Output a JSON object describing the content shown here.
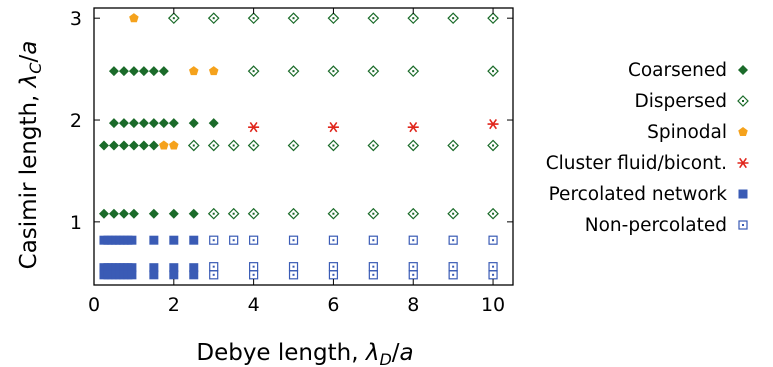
{
  "chart_data": {
    "type": "scatter",
    "xlabel": {
      "prefix": "Debye length, ",
      "sym": "λ",
      "sub": "D",
      "suffix": "/a"
    },
    "ylabel": {
      "prefix": "Casimir length, ",
      "sym": "λ",
      "sub": "C",
      "suffix": "/a"
    },
    "xlim": [
      0,
      10.5
    ],
    "ylim": [
      0.38,
      3.1
    ],
    "xticks": [
      0,
      2,
      4,
      6,
      8,
      10
    ],
    "yticks": [
      1,
      2,
      3
    ],
    "grid": false,
    "legend_position": "right",
    "series": [
      {
        "name": "Coarsened",
        "marker": "diamond-filled",
        "color": "#1b6b2a",
        "points": [
          [
            0.5,
            2.48
          ],
          [
            0.75,
            2.48
          ],
          [
            1.0,
            2.48
          ],
          [
            1.25,
            2.48
          ],
          [
            1.5,
            2.48
          ],
          [
            1.75,
            2.48
          ],
          [
            0.5,
            1.97
          ],
          [
            0.75,
            1.97
          ],
          [
            1.0,
            1.97
          ],
          [
            1.25,
            1.97
          ],
          [
            1.5,
            1.97
          ],
          [
            1.75,
            1.97
          ],
          [
            2.0,
            1.97
          ],
          [
            2.5,
            1.97
          ],
          [
            3.0,
            1.97
          ],
          [
            0.25,
            1.75
          ],
          [
            0.5,
            1.75
          ],
          [
            0.75,
            1.75
          ],
          [
            1.0,
            1.75
          ],
          [
            1.25,
            1.75
          ],
          [
            1.5,
            1.75
          ],
          [
            0.25,
            1.08
          ],
          [
            0.5,
            1.08
          ],
          [
            0.75,
            1.08
          ],
          [
            1.0,
            1.08
          ],
          [
            1.5,
            1.08
          ],
          [
            2.0,
            1.08
          ],
          [
            2.5,
            1.08
          ]
        ]
      },
      {
        "name": "Dispersed",
        "marker": "diamond-open",
        "color": "#1b6b2a",
        "points": [
          [
            2,
            3
          ],
          [
            3,
            3
          ],
          [
            4,
            3
          ],
          [
            5,
            3
          ],
          [
            6,
            3
          ],
          [
            7,
            3
          ],
          [
            8,
            3
          ],
          [
            9,
            3
          ],
          [
            10,
            3
          ],
          [
            4,
            2.48
          ],
          [
            5,
            2.48
          ],
          [
            6,
            2.48
          ],
          [
            7,
            2.48
          ],
          [
            8,
            2.48
          ],
          [
            10,
            2.48
          ],
          [
            2.5,
            1.75
          ],
          [
            3,
            1.75
          ],
          [
            3.5,
            1.75
          ],
          [
            4,
            1.75
          ],
          [
            5,
            1.75
          ],
          [
            6,
            1.75
          ],
          [
            7,
            1.75
          ],
          [
            8,
            1.75
          ],
          [
            9,
            1.75
          ],
          [
            10,
            1.75
          ],
          [
            3,
            1.08
          ],
          [
            3.5,
            1.08
          ],
          [
            4,
            1.08
          ],
          [
            5,
            1.08
          ],
          [
            6,
            1.08
          ],
          [
            7,
            1.08
          ],
          [
            8,
            1.08
          ],
          [
            9,
            1.08
          ],
          [
            10,
            1.08
          ]
        ]
      },
      {
        "name": "Spinodal",
        "marker": "pentagon",
        "color": "#f5a21c",
        "points": [
          [
            1,
            3
          ],
          [
            2.5,
            2.48
          ],
          [
            3,
            2.48
          ],
          [
            1.75,
            1.75
          ],
          [
            2,
            1.75
          ]
        ]
      },
      {
        "name": "Cluster fluid/bicont.",
        "marker": "asterisk",
        "color": "#e0261c",
        "points": [
          [
            4,
            1.93
          ],
          [
            6,
            1.93
          ],
          [
            8,
            1.93
          ],
          [
            10,
            1.96
          ]
        ]
      },
      {
        "name": "Percolated network",
        "marker": "square-filled",
        "color": "#3a5bb5",
        "points": [
          [
            0.25,
            0.82
          ],
          [
            0.35,
            0.82
          ],
          [
            0.45,
            0.82
          ],
          [
            0.55,
            0.82
          ],
          [
            0.65,
            0.82
          ],
          [
            0.75,
            0.82
          ],
          [
            0.85,
            0.82
          ],
          [
            0.95,
            0.82
          ],
          [
            1.5,
            0.82
          ],
          [
            2.0,
            0.82
          ],
          [
            2.5,
            0.82
          ],
          [
            0.25,
            0.55
          ],
          [
            0.35,
            0.55
          ],
          [
            0.45,
            0.55
          ],
          [
            0.55,
            0.55
          ],
          [
            0.65,
            0.55
          ],
          [
            0.75,
            0.55
          ],
          [
            0.85,
            0.55
          ],
          [
            0.95,
            0.55
          ],
          [
            1.5,
            0.55
          ],
          [
            2.0,
            0.55
          ],
          [
            2.5,
            0.55
          ],
          [
            0.25,
            0.48
          ],
          [
            0.35,
            0.48
          ],
          [
            0.45,
            0.48
          ],
          [
            0.55,
            0.48
          ],
          [
            0.65,
            0.48
          ],
          [
            0.75,
            0.48
          ],
          [
            0.85,
            0.48
          ],
          [
            0.95,
            0.48
          ],
          [
            1.5,
            0.48
          ],
          [
            2.0,
            0.48
          ],
          [
            2.5,
            0.48
          ]
        ]
      },
      {
        "name": "Non-percolated",
        "marker": "square-open",
        "color": "#3a5bb5",
        "points": [
          [
            3,
            0.82
          ],
          [
            3.5,
            0.82
          ],
          [
            4,
            0.82
          ],
          [
            5,
            0.82
          ],
          [
            6,
            0.82
          ],
          [
            7,
            0.82
          ],
          [
            8,
            0.82
          ],
          [
            9,
            0.82
          ],
          [
            10,
            0.82
          ],
          [
            3,
            0.56
          ],
          [
            4,
            0.56
          ],
          [
            5,
            0.56
          ],
          [
            6,
            0.56
          ],
          [
            7,
            0.56
          ],
          [
            8,
            0.56
          ],
          [
            9,
            0.56
          ],
          [
            10,
            0.56
          ],
          [
            3,
            0.48
          ],
          [
            4,
            0.48
          ],
          [
            5,
            0.48
          ],
          [
            6,
            0.48
          ],
          [
            7,
            0.48
          ],
          [
            8,
            0.48
          ],
          [
            9,
            0.48
          ],
          [
            10,
            0.48
          ]
        ]
      }
    ]
  }
}
